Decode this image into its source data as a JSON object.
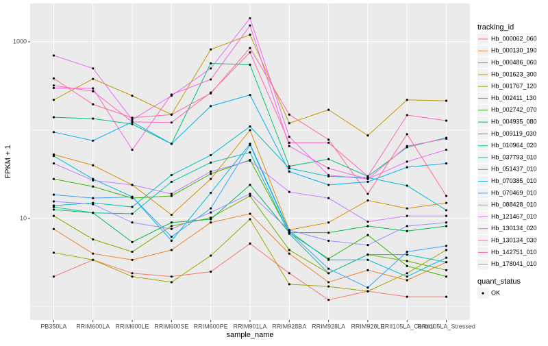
{
  "chart_data": {
    "type": "line",
    "x_label": "sample_name",
    "y_label": "FPKM + 1",
    "log_y": true,
    "grid": true,
    "categories": [
      "PB350LA",
      "RRIM600LA",
      "RRIM600LE",
      "RRIM600SE",
      "RRIM600PE",
      "RRIM901LA",
      "RRIM928BA",
      "RRIM928LA",
      "RRIM928LE",
      "RRII105LA_Control",
      "RRII105LA_Stressed"
    ],
    "ylim": [
      0.71,
      2718
    ],
    "yticks": [
      10,
      1000
    ],
    "legend_title": "tracking_id",
    "point_legend": {
      "title": "quant_status",
      "labels": [
        "OK"
      ],
      "color": "#000000"
    },
    "series": [
      {
        "name": "Hb_000062_060",
        "color": "#F8766D",
        "values": [
          2.2,
          3.4,
          2.4,
          2.2,
          2.5,
          5.2,
          2.4,
          1.2,
          1.5,
          1.3,
          1.3
        ]
      },
      {
        "name": "Hb_000130_190",
        "color": "#EA8331",
        "values": [
          7.6,
          4.0,
          3.4,
          4.4,
          9,
          11.3,
          4,
          1.9,
          2.6,
          2.0,
          3.2
        ]
      },
      {
        "name": "Hb_000486_060",
        "color": "#D89000",
        "values": [
          53,
          40,
          24,
          11,
          28,
          100,
          7.4,
          9,
          16,
          13,
          15
        ]
      },
      {
        "name": "Hb_001623_300",
        "color": "#C09B00",
        "values": [
          220,
          380,
          245,
          150,
          820,
          1200,
          120,
          170,
          87,
          220,
          215
        ]
      },
      {
        "name": "Hb_001767_120",
        "color": "#A3A500",
        "values": [
          4.1,
          3.4,
          2.2,
          1.9,
          3.8,
          9.8,
          1.8,
          1.7,
          1.5,
          2.4,
          4.4
        ]
      },
      {
        "name": "Hb_002411_130",
        "color": "#7CAE00",
        "values": [
          10.7,
          5.8,
          4.2,
          8.2,
          10.2,
          18,
          4.4,
          2.4,
          3.9,
          3.3,
          2.6
        ]
      },
      {
        "name": "Hb_002742_070",
        "color": "#39B600",
        "values": [
          28,
          23,
          17,
          18,
          32,
          46,
          6.9,
          3.5,
          6.5,
          2.9,
          2.2
        ]
      },
      {
        "name": "Hb_004935_080",
        "color": "#00BB4E",
        "values": [
          12.6,
          11.6,
          5.4,
          9,
          9.8,
          24,
          6.9,
          6.9,
          8.2,
          7.2,
          8.2
        ]
      },
      {
        "name": "Hb_009119_030",
        "color": "#00BF7D",
        "values": [
          140,
          135,
          117,
          70,
          570,
          550,
          39,
          47,
          30,
          64,
          82
        ]
      },
      {
        "name": "Hb_010964_020",
        "color": "#00C1A3",
        "values": [
          13.5,
          11.6,
          11.3,
          26,
          43,
          56,
          6.7,
          2.4,
          3.9,
          3.9,
          3.2
        ]
      },
      {
        "name": "Hb_037793_010",
        "color": "#00BFC4",
        "values": [
          14,
          15,
          13.5,
          31,
          52,
          110,
          37,
          30,
          29,
          23.5,
          12.4
        ]
      },
      {
        "name": "Hb_051437_010",
        "color": "#00BAE0",
        "values": [
          51,
          28,
          17.6,
          5.6,
          19.5,
          70,
          7.2,
          3.4,
          3.4,
          2.2,
          3.6
        ]
      },
      {
        "name": "Hb_070385_010",
        "color": "#00B0F6",
        "values": [
          95,
          76,
          124,
          70,
          187,
          250,
          34,
          24,
          26,
          38,
          42
        ]
      },
      {
        "name": "Hb_070469_010",
        "color": "#35A2FF",
        "values": [
          18.6,
          17,
          17.5,
          6.2,
          13,
          68,
          7,
          2.7,
          1.65,
          4.2,
          4.9
        ]
      },
      {
        "name": "Hb_088428_010",
        "color": "#9590FF",
        "values": [
          15.6,
          14.5,
          9,
          7.6,
          11.7,
          19,
          7.4,
          5.6,
          5,
          8.2,
          9
        ]
      },
      {
        "name": "Hb_121467_010",
        "color": "#C77CFF",
        "values": [
          42,
          27,
          24,
          19,
          34,
          45,
          20,
          17,
          9.2,
          10.7,
          10.7
        ]
      },
      {
        "name": "Hb_130134_020",
        "color": "#E76BF3",
        "values": [
          700,
          500,
          131,
          245,
          500,
          1850,
          84,
          31,
          28,
          44,
          60
        ]
      },
      {
        "name": "Hb_130134_030",
        "color": "#FA62DB",
        "values": [
          300,
          297,
          60,
          253,
          375,
          1530,
          66,
          37,
          28,
          66,
          80
        ]
      },
      {
        "name": "Hb_142751_010",
        "color": "#FF62BC",
        "values": [
          320,
          276,
          124,
          122,
          266,
          760,
          72,
          72,
          30,
          148,
          128
        ]
      },
      {
        "name": "Hb_178041_010",
        "color": "#FF6C91",
        "values": [
          385,
          196,
          138,
          150,
          261,
          850,
          150,
          78,
          19,
          90,
          18
        ]
      }
    ]
  }
}
